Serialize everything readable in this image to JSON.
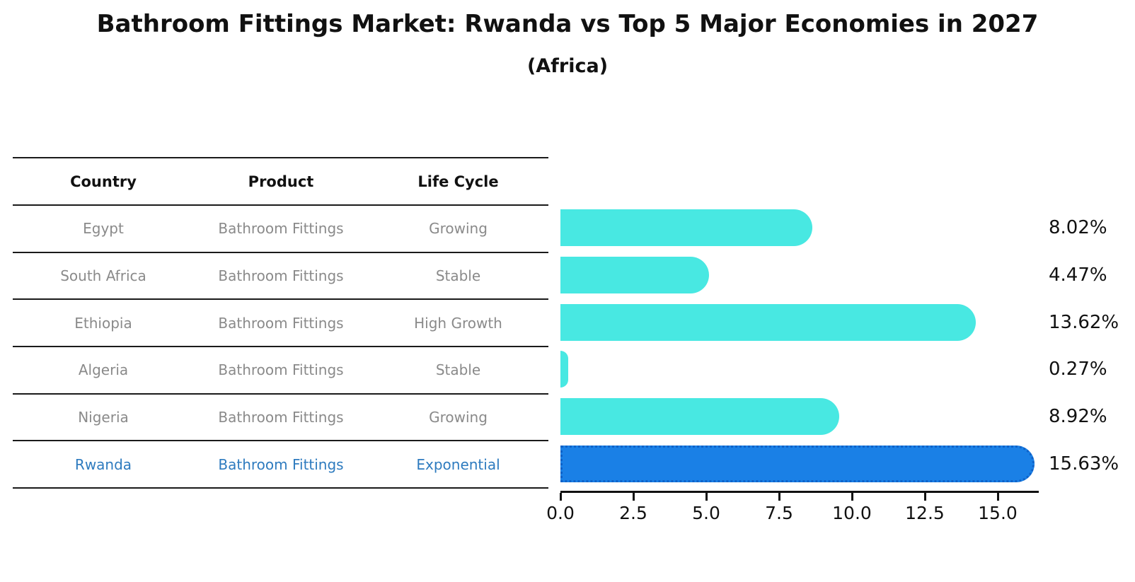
{
  "title": "Bathroom Fittings Market: Rwanda vs Top 5 Major Economies in 2027",
  "subtitle": "(Africa)",
  "table": {
    "headers": [
      "Country",
      "Product",
      "Life Cycle"
    ],
    "rows": [
      {
        "country": "Egypt",
        "product": "Bathroom Fittings",
        "life_cycle": "Growing",
        "highlighted": false
      },
      {
        "country": "South Africa",
        "product": "Bathroom Fittings",
        "life_cycle": "Stable",
        "highlighted": false
      },
      {
        "country": "Ethiopia",
        "product": "Bathroom Fittings",
        "life_cycle": "High Growth",
        "highlighted": false
      },
      {
        "country": "Algeria",
        "product": "Bathroom Fittings",
        "life_cycle": "Stable",
        "highlighted": false
      },
      {
        "country": "Nigeria",
        "product": "Bathroom Fittings",
        "life_cycle": "Growing",
        "highlighted": false
      },
      {
        "country": "Rwanda",
        "product": "Bathroom Fittings",
        "life_cycle": "Exponential",
        "highlighted": true
      }
    ]
  },
  "chart_data": {
    "type": "bar",
    "orientation": "horizontal",
    "title": "Bathroom Fittings Market: Rwanda vs Top 5 Major Economies in 2027 (Africa)",
    "categories": [
      "Egypt",
      "South Africa",
      "Ethiopia",
      "Algeria",
      "Nigeria",
      "Rwanda"
    ],
    "values": [
      8.02,
      4.47,
      13.62,
      0.27,
      8.92,
      15.63
    ],
    "value_labels": [
      "8.02%",
      "4.47%",
      "13.62%",
      "0.27%",
      "8.92%",
      "15.63%"
    ],
    "xlabel": "",
    "ylabel": "",
    "xlim": [
      0,
      16.4
    ],
    "xticks": [
      0,
      2.5,
      5,
      7.5,
      10,
      12.5,
      15
    ],
    "xtick_labels": [
      "0.0",
      "2.5",
      "5.0",
      "7.5",
      "10.0",
      "12.5",
      "15.0"
    ],
    "grid": false,
    "legend": false,
    "highlight_index": 5
  },
  "colors": {
    "background": "#ffffff",
    "bar": "#48e8e2",
    "highlight_bar": "#1a80e6",
    "highlight_border": "#0f62c8",
    "row_text": "#8a8a8a",
    "highlight_text": "#2e7bbf",
    "header_text": "#111111",
    "axis": "#111111",
    "value_label": "#111111"
  }
}
